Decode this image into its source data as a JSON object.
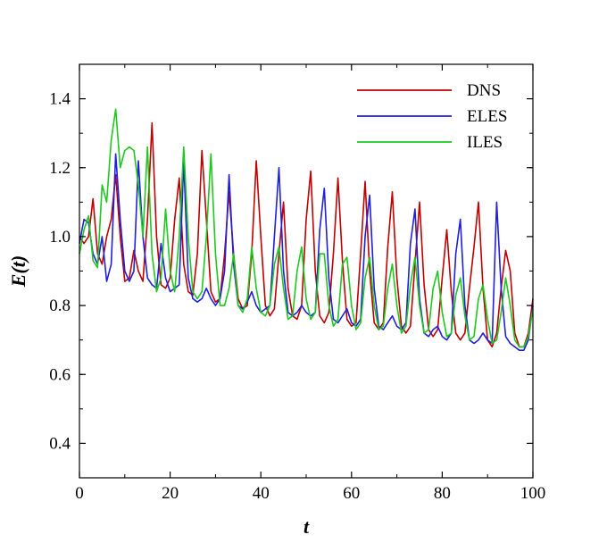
{
  "chart_data": {
    "type": "line",
    "title": "",
    "xlabel": "t",
    "ylabel": "E(t)",
    "xlim": [
      0,
      100
    ],
    "ylim": [
      0.3,
      1.5
    ],
    "xticks": [
      0,
      20,
      40,
      60,
      80,
      100
    ],
    "yticks": [
      0.4,
      0.6,
      0.8,
      1.0,
      1.2,
      1.4
    ],
    "xtick_labels": [
      "0",
      "20",
      "40",
      "60",
      "80",
      "100"
    ],
    "ytick_labels": [
      "0.4",
      "0.6",
      "0.8",
      "1.0",
      "1.2",
      "1.4"
    ],
    "grid": false,
    "legend_position": "top-right",
    "series": [
      {
        "name": "DNS",
        "color": "#c00000",
        "x": [
          0,
          1,
          2,
          3,
          4,
          5,
          6,
          7,
          8,
          9,
          10,
          11,
          12,
          13,
          14,
          15,
          16,
          17,
          18,
          19,
          20,
          21,
          22,
          23,
          24,
          25,
          26,
          27,
          28,
          29,
          30,
          31,
          32,
          33,
          34,
          35,
          36,
          37,
          38,
          39,
          40,
          41,
          42,
          43,
          44,
          45,
          46,
          47,
          48,
          49,
          50,
          51,
          52,
          53,
          54,
          55,
          56,
          57,
          58,
          59,
          60,
          61,
          62,
          63,
          64,
          65,
          66,
          67,
          68,
          69,
          70,
          71,
          72,
          73,
          74,
          75,
          76,
          77,
          78,
          79,
          80,
          81,
          82,
          83,
          84,
          85,
          86,
          87,
          88,
          89,
          90,
          91,
          92,
          93,
          94,
          95,
          96,
          97,
          98,
          99,
          100
        ],
        "y": [
          1.0,
          0.98,
          1.0,
          1.11,
          0.95,
          0.92,
          1.0,
          1.05,
          1.18,
          1.0,
          0.87,
          0.88,
          0.96,
          0.9,
          0.87,
          1.05,
          1.33,
          1.0,
          0.86,
          0.85,
          0.88,
          1.05,
          1.17,
          0.92,
          0.84,
          0.83,
          0.95,
          1.25,
          1.05,
          0.84,
          0.81,
          0.82,
          0.95,
          1.13,
          0.95,
          0.82,
          0.79,
          0.8,
          0.95,
          1.22,
          1.0,
          0.8,
          0.77,
          0.79,
          0.95,
          1.1,
          0.85,
          0.77,
          0.76,
          0.8,
          1.05,
          1.19,
          0.9,
          0.77,
          0.75,
          0.78,
          0.95,
          1.17,
          0.93,
          0.76,
          0.74,
          0.75,
          0.95,
          1.16,
          0.9,
          0.75,
          0.73,
          0.75,
          0.97,
          1.13,
          0.88,
          0.74,
          0.72,
          0.74,
          0.92,
          1.1,
          0.86,
          0.73,
          0.71,
          0.73,
          0.88,
          1.02,
          0.84,
          0.72,
          0.7,
          0.72,
          0.85,
          0.97,
          1.1,
          0.85,
          0.7,
          0.68,
          0.72,
          0.85,
          0.96,
          0.9,
          0.72,
          0.68,
          0.68,
          0.72,
          0.82
        ]
      },
      {
        "name": "ELES",
        "color": "#1f1fdd",
        "x": [
          0,
          1,
          2,
          3,
          4,
          5,
          6,
          7,
          8,
          9,
          10,
          11,
          12,
          13,
          14,
          15,
          16,
          17,
          18,
          19,
          20,
          21,
          22,
          23,
          24,
          25,
          26,
          27,
          28,
          29,
          30,
          31,
          32,
          33,
          34,
          35,
          36,
          37,
          38,
          39,
          40,
          41,
          42,
          43,
          44,
          45,
          46,
          47,
          48,
          49,
          50,
          51,
          52,
          53,
          54,
          55,
          56,
          57,
          58,
          59,
          60,
          61,
          62,
          63,
          64,
          65,
          66,
          67,
          68,
          69,
          70,
          71,
          72,
          73,
          74,
          75,
          76,
          77,
          78,
          79,
          80,
          81,
          82,
          83,
          84,
          85,
          86,
          87,
          88,
          89,
          90,
          91,
          92,
          93,
          94,
          95,
          96,
          97,
          98,
          99,
          100
        ],
        "y": [
          0.98,
          1.05,
          1.04,
          0.95,
          0.92,
          1.0,
          0.87,
          0.92,
          1.24,
          1.05,
          0.9,
          0.87,
          0.9,
          1.22,
          1.0,
          0.88,
          0.86,
          0.85,
          0.98,
          0.88,
          0.84,
          0.85,
          0.86,
          1.22,
          0.88,
          0.82,
          0.81,
          0.82,
          0.85,
          0.82,
          0.8,
          0.82,
          0.9,
          1.18,
          0.92,
          0.8,
          0.79,
          0.81,
          0.84,
          0.8,
          0.78,
          0.79,
          0.8,
          1.0,
          1.2,
          0.9,
          0.78,
          0.77,
          0.78,
          0.8,
          0.78,
          0.77,
          0.78,
          1.02,
          1.14,
          0.88,
          0.76,
          0.75,
          0.77,
          0.79,
          0.75,
          0.74,
          0.76,
          1.0,
          1.12,
          0.85,
          0.74,
          0.73,
          0.75,
          0.77,
          0.74,
          0.73,
          0.75,
          0.98,
          1.08,
          0.82,
          0.72,
          0.71,
          0.73,
          0.74,
          0.71,
          0.7,
          0.72,
          0.95,
          1.05,
          0.8,
          0.7,
          0.69,
          0.7,
          0.72,
          0.7,
          0.69,
          1.1,
          0.85,
          0.71,
          0.69,
          0.68,
          0.67,
          0.67,
          0.7,
          0.8
        ]
      },
      {
        "name": "ILES",
        "color": "#1ec81e",
        "x": [
          0,
          1,
          2,
          3,
          4,
          5,
          6,
          7,
          8,
          9,
          10,
          11,
          12,
          13,
          14,
          15,
          16,
          17,
          18,
          19,
          20,
          21,
          22,
          23,
          24,
          25,
          26,
          27,
          28,
          29,
          30,
          31,
          32,
          33,
          34,
          35,
          36,
          37,
          38,
          39,
          40,
          41,
          42,
          43,
          44,
          45,
          46,
          47,
          48,
          49,
          50,
          51,
          52,
          53,
          54,
          55,
          56,
          57,
          58,
          59,
          60,
          61,
          62,
          63,
          64,
          65,
          66,
          67,
          68,
          69,
          70,
          71,
          72,
          73,
          74,
          75,
          76,
          77,
          78,
          79,
          80,
          81,
          82,
          83,
          84,
          85,
          86,
          87,
          88,
          89,
          90,
          91,
          92,
          93,
          94,
          95,
          96,
          97,
          98,
          99,
          100
        ],
        "y": [
          0.95,
          1.02,
          1.06,
          0.93,
          0.91,
          1.15,
          1.1,
          1.28,
          1.37,
          1.2,
          1.25,
          1.26,
          1.25,
          1.15,
          1.0,
          1.26,
          0.95,
          0.84,
          0.88,
          1.08,
          0.9,
          0.84,
          1.0,
          1.26,
          1.0,
          0.84,
          0.82,
          0.84,
          1.0,
          1.24,
          0.95,
          0.8,
          0.8,
          0.85,
          0.95,
          0.8,
          0.78,
          0.82,
          0.97,
          0.85,
          0.78,
          0.77,
          0.8,
          0.92,
          0.97,
          0.85,
          0.76,
          0.77,
          0.9,
          0.97,
          0.82,
          0.76,
          0.78,
          0.95,
          0.95,
          0.8,
          0.74,
          0.76,
          0.92,
          0.94,
          0.8,
          0.73,
          0.75,
          0.88,
          0.94,
          0.8,
          0.73,
          0.74,
          0.85,
          0.92,
          0.8,
          0.72,
          0.74,
          0.86,
          0.94,
          0.8,
          0.72,
          0.73,
          0.85,
          0.9,
          0.78,
          0.71,
          0.72,
          0.83,
          0.88,
          0.77,
          0.7,
          0.71,
          0.82,
          0.86,
          0.76,
          0.69,
          0.7,
          0.78,
          0.88,
          0.8,
          0.7,
          0.68,
          0.68,
          0.71,
          0.79
        ]
      }
    ]
  }
}
